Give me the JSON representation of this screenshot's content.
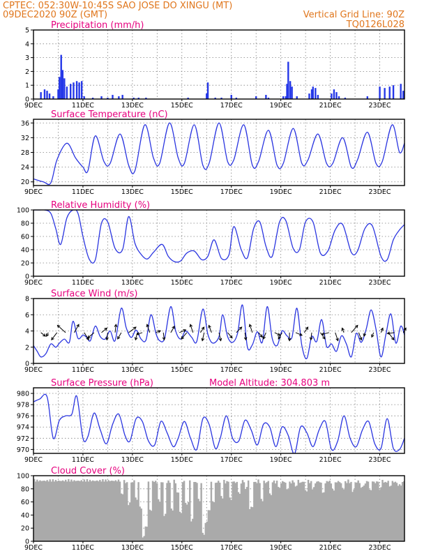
{
  "header": {
    "line1": "CPTEC:   052:30W-10:45S   SAO JOSE DO XINGU (MT)",
    "line2": "09DEC2020 90Z (GMT)",
    "right1": "Vertical Grid Line: 90Z",
    "right2": "TQ0126L028"
  },
  "colors": {
    "header": "#e0761c",
    "title": "#e6007e",
    "line": "#2a35e0",
    "precip": "#2437e8",
    "cloud": "#aaaaaa",
    "arrow": "#000000"
  },
  "x_axis": {
    "ticks": [
      "9DEC",
      "11DEC",
      "13DEC",
      "15DEC",
      "17DEC",
      "19DEC",
      "21DEC",
      "23DEC"
    ],
    "days": 15
  },
  "chart_data": [
    {
      "type": "bar",
      "title": "Precipitation (mm/h)",
      "ylim": [
        0,
        5
      ],
      "yticks": [
        0,
        1,
        2,
        3,
        4,
        5
      ],
      "bars": [
        [
          0.3,
          0.5
        ],
        [
          0.45,
          0.7
        ],
        [
          0.55,
          0.6
        ],
        [
          0.65,
          0.4
        ],
        [
          0.8,
          0.2
        ],
        [
          1.0,
          0.7
        ],
        [
          1.05,
          1.6
        ],
        [
          1.12,
          3.2
        ],
        [
          1.18,
          2.1
        ],
        [
          1.25,
          1.5
        ],
        [
          1.35,
          0.9
        ],
        [
          1.5,
          1.1
        ],
        [
          1.62,
          1.2
        ],
        [
          1.75,
          1.3
        ],
        [
          1.85,
          1.2
        ],
        [
          1.95,
          1.3
        ],
        [
          2.05,
          0.2
        ],
        [
          2.4,
          0.1
        ],
        [
          2.75,
          0.2
        ],
        [
          3.0,
          0.1
        ],
        [
          3.2,
          0.3
        ],
        [
          3.45,
          0.2
        ],
        [
          3.6,
          0.3
        ],
        [
          4.05,
          0.1
        ],
        [
          4.25,
          0.1
        ],
        [
          4.55,
          0.1
        ],
        [
          6.25,
          0.1
        ],
        [
          7.0,
          0.4
        ],
        [
          7.05,
          1.2
        ],
        [
          7.35,
          0.1
        ],
        [
          7.6,
          0.1
        ],
        [
          8.0,
          0.3
        ],
        [
          8.2,
          0.1
        ],
        [
          9.0,
          0.2
        ],
        [
          9.4,
          0.3
        ],
        [
          9.5,
          0.1
        ],
        [
          10.1,
          0.2
        ],
        [
          10.2,
          0.2
        ],
        [
          10.25,
          1.1
        ],
        [
          10.3,
          2.7
        ],
        [
          10.38,
          1.3
        ],
        [
          10.45,
          0.9
        ],
        [
          10.65,
          0.2
        ],
        [
          11.15,
          0.4
        ],
        [
          11.25,
          0.7
        ],
        [
          11.3,
          0.9
        ],
        [
          11.4,
          0.8
        ],
        [
          11.5,
          0.3
        ],
        [
          12.05,
          0.4
        ],
        [
          12.15,
          0.7
        ],
        [
          12.25,
          0.5
        ],
        [
          12.35,
          0.2
        ],
        [
          12.6,
          0.1
        ],
        [
          13.5,
          0.2
        ],
        [
          14.0,
          0.9
        ],
        [
          14.2,
          0.8
        ],
        [
          14.4,
          0.9
        ],
        [
          14.55,
          1.0
        ],
        [
          14.85,
          1.1
        ],
        [
          14.95,
          0.6
        ]
      ]
    },
    {
      "type": "line",
      "title": "Surface Temperature (nC)",
      "ylim": [
        19,
        37
      ],
      "yticks": [
        20,
        24,
        28,
        32,
        36
      ],
      "x": [
        0,
        0.4,
        0.7,
        0.95,
        1.35,
        1.7,
        2.0,
        2.2,
        2.5,
        2.85,
        3.1,
        3.5,
        3.85,
        4.1,
        4.5,
        4.85,
        5.1,
        5.5,
        5.85,
        6.1,
        6.5,
        6.85,
        7.1,
        7.5,
        7.85,
        8.1,
        8.5,
        8.85,
        9.1,
        9.5,
        9.85,
        10.1,
        10.5,
        10.85,
        11.1,
        11.5,
        11.85,
        12.1,
        12.5,
        12.85,
        13.1,
        13.5,
        13.85,
        14.1,
        14.5,
        14.8,
        15.0
      ],
      "values": [
        20.8,
        20.0,
        19.7,
        26.0,
        30.5,
        26.5,
        24.0,
        23.0,
        32.5,
        25.5,
        25.0,
        33.0,
        24.5,
        23.0,
        35.5,
        26.5,
        25.0,
        36.0,
        26.5,
        25.0,
        35.5,
        24.5,
        25.0,
        36.0,
        25.5,
        26.0,
        35.5,
        24.5,
        25.5,
        34.0,
        24.5,
        25.0,
        34.5,
        25.0,
        26.0,
        33.0,
        25.0,
        25.0,
        32.0,
        24.0,
        26.0,
        33.5,
        25.0,
        25.5,
        35.5,
        28.0,
        30.5
      ]
    },
    {
      "type": "line",
      "title": "Relative Humidity (%)",
      "ylim": [
        0,
        100
      ],
      "yticks": [
        0,
        20,
        40,
        60,
        80,
        100
      ],
      "x": [
        0,
        0.25,
        0.45,
        0.7,
        0.9,
        1.1,
        1.35,
        1.6,
        1.8,
        2.0,
        2.25,
        2.5,
        2.75,
        3.0,
        3.3,
        3.6,
        3.85,
        4.1,
        4.35,
        4.6,
        4.85,
        5.2,
        5.45,
        5.7,
        5.95,
        6.2,
        6.5,
        6.8,
        7.05,
        7.3,
        7.6,
        7.9,
        8.1,
        8.4,
        8.65,
        8.9,
        9.15,
        9.4,
        9.65,
        9.95,
        10.2,
        10.5,
        10.75,
        11.0,
        11.3,
        11.6,
        11.9,
        12.2,
        12.5,
        12.85,
        13.1,
        13.4,
        13.7,
        14.05,
        14.3,
        14.55,
        14.8,
        15.0
      ],
      "values": [
        100,
        100,
        100,
        95,
        72,
        48,
        88,
        100,
        95,
        60,
        26,
        25,
        80,
        82,
        42,
        40,
        90,
        50,
        33,
        26,
        36,
        48,
        30,
        22,
        23,
        35,
        38,
        25,
        30,
        55,
        27,
        32,
        75,
        40,
        28,
        72,
        82,
        45,
        30,
        82,
        84,
        42,
        40,
        82,
        82,
        35,
        38,
        70,
        78,
        36,
        38,
        72,
        76,
        30,
        25,
        55,
        70,
        78
      ]
    },
    {
      "type": "line",
      "title": "Surface Wind (m/s)",
      "ylim": [
        0,
        8
      ],
      "yticks": [
        0,
        2,
        4,
        6,
        8
      ],
      "x": [
        0,
        0.15,
        0.3,
        0.5,
        0.7,
        0.9,
        1.05,
        1.25,
        1.45,
        1.6,
        1.8,
        2.0,
        2.15,
        2.3,
        2.5,
        2.7,
        2.9,
        3.1,
        3.3,
        3.55,
        3.75,
        3.95,
        4.15,
        4.35,
        4.55,
        4.75,
        4.95,
        5.1,
        5.3,
        5.55,
        5.75,
        5.95,
        6.15,
        6.4,
        6.6,
        6.85,
        7.05,
        7.25,
        7.5,
        7.65,
        7.85,
        8.05,
        8.25,
        8.45,
        8.65,
        8.85,
        9.05,
        9.25,
        9.45,
        9.65,
        9.85,
        10.05,
        10.25,
        10.45,
        10.65,
        10.85,
        11.05,
        11.25,
        11.45,
        11.65,
        11.85,
        12.05,
        12.25,
        12.45,
        12.65,
        12.85,
        13.05,
        13.25,
        13.45,
        13.65,
        13.85,
        14.05,
        14.25,
        14.45,
        14.65,
        14.85,
        15.0
      ],
      "values": [
        2.2,
        1.5,
        0.8,
        1.2,
        2.4,
        2.0,
        2.5,
        3.0,
        2.6,
        5.2,
        3.1,
        3.5,
        3.2,
        2.8,
        4.6,
        3.3,
        3.0,
        4.0,
        2.8,
        6.8,
        4.4,
        3.2,
        4.1,
        3.0,
        2.9,
        6.0,
        3.7,
        2.8,
        3.1,
        7.0,
        4.0,
        3.0,
        4.0,
        3.2,
        2.7,
        6.7,
        3.6,
        2.5,
        3.3,
        6.0,
        3.3,
        2.6,
        3.7,
        7.2,
        2.0,
        2.3,
        3.9,
        2.6,
        7.0,
        3.1,
        2.2,
        4.0,
        3.4,
        3.2,
        6.8,
        2.2,
        0.6,
        3.3,
        2.7,
        5.4,
        2.1,
        2.4,
        1.5,
        3.4,
        2.4,
        0.8,
        3.7,
        2.6,
        4.2,
        6.6,
        4.2,
        0.8,
        3.6,
        6.1,
        2.5,
        4.6,
        3.5
      ],
      "arrows": [
        [
          0.3,
          0.5,
          -0.4
        ],
        [
          0.6,
          -0.2,
          -0.4
        ],
        [
          0.95,
          -0.6,
          -0.8
        ],
        [
          1.3,
          -0.9,
          0.8
        ],
        [
          1.65,
          0.5,
          0.9
        ],
        [
          2.05,
          0.5,
          -0.8
        ],
        [
          2.45,
          -0.7,
          -0.6
        ],
        [
          2.75,
          0.6,
          0.5
        ],
        [
          3.0,
          -0.1,
          -0.8
        ],
        [
          3.3,
          0.1,
          0.9
        ],
        [
          3.55,
          -0.4,
          -0.7
        ],
        [
          3.85,
          0.8,
          0.6
        ],
        [
          4.2,
          -0.2,
          -0.8
        ],
        [
          4.4,
          -0.6,
          -0.2
        ],
        [
          4.7,
          -0.3,
          0.9
        ],
        [
          4.95,
          0.5,
          0.2
        ],
        [
          5.25,
          0.1,
          -0.8
        ],
        [
          5.55,
          0.4,
          0.7
        ],
        [
          5.9,
          0.7,
          0.3
        ],
        [
          6.2,
          -0.6,
          -0.7
        ],
        [
          6.45,
          -0.3,
          0.9
        ],
        [
          6.75,
          0.4,
          0.6
        ],
        [
          6.9,
          -0.2,
          -0.9
        ],
        [
          7.2,
          -0.3,
          0.8
        ],
        [
          7.5,
          0.2,
          -0.9
        ],
        [
          7.85,
          0.5,
          -0.6
        ],
        [
          8.2,
          0.6,
          0.6
        ],
        [
          8.55,
          0.1,
          -0.8
        ],
        [
          8.85,
          -0.3,
          0.9
        ],
        [
          9.1,
          0.4,
          -0.5
        ],
        [
          9.4,
          -0.3,
          -0.7
        ],
        [
          9.75,
          0.6,
          -0.3
        ],
        [
          10.05,
          -0.4,
          -0.7
        ],
        [
          10.35,
          0.0,
          -0.9
        ],
        [
          10.6,
          0.7,
          -0.3
        ],
        [
          10.95,
          0.4,
          0.6
        ],
        [
          11.25,
          -0.1,
          -0.8
        ],
        [
          11.6,
          0.5,
          -0.7
        ],
        [
          11.95,
          -0.8,
          -0.2
        ],
        [
          12.2,
          0.3,
          -0.9
        ],
        [
          12.55,
          -0.2,
          0.5
        ],
        [
          12.85,
          0.7,
          0.8
        ],
        [
          13.15,
          0.3,
          -0.8
        ],
        [
          13.4,
          -0.1,
          -0.4
        ],
        [
          13.75,
          -0.2,
          -0.5
        ],
        [
          14.05,
          0.2,
          0.5
        ],
        [
          14.35,
          0.6,
          -0.8
        ],
        [
          14.6,
          -0.8,
          -0.1
        ],
        [
          14.95,
          0.3,
          0.5
        ]
      ]
    },
    {
      "type": "line",
      "title": "Surface Pressure (hPa)",
      "subtitle": "Model Altitude: 304.803 m",
      "ylim": [
        969.3,
        981
      ],
      "yticks": [
        970,
        972,
        974,
        976,
        978,
        980
      ],
      "x": [
        0,
        0.25,
        0.55,
        0.8,
        1.05,
        1.3,
        1.55,
        1.75,
        2.0,
        2.2,
        2.45,
        2.7,
        2.95,
        3.2,
        3.45,
        3.7,
        3.9,
        4.15,
        4.4,
        4.65,
        4.9,
        5.15,
        5.4,
        5.65,
        5.85,
        6.1,
        6.35,
        6.6,
        6.85,
        7.1,
        7.35,
        7.55,
        7.8,
        8.05,
        8.3,
        8.55,
        8.8,
        9.05,
        9.3,
        9.55,
        9.8,
        10.05,
        10.3,
        10.55,
        10.8,
        11.05,
        11.3,
        11.55,
        11.8,
        12.05,
        12.3,
        12.55,
        12.8,
        13.05,
        13.3,
        13.55,
        13.8,
        14.05,
        14.3,
        14.55,
        14.8,
        15.0
      ],
      "values": [
        978.5,
        979.0,
        979.4,
        972.0,
        975.2,
        976.0,
        976.3,
        979.5,
        972.0,
        972.3,
        976.5,
        973.5,
        971.0,
        974.5,
        976.3,
        972.5,
        971.5,
        975.5,
        975.0,
        971.5,
        970.8,
        975.0,
        973.0,
        970.5,
        972.0,
        975.0,
        972.0,
        970.0,
        975.5,
        974.5,
        970.2,
        972.0,
        976.0,
        972.0,
        971.5,
        975.2,
        973.5,
        970.8,
        974.5,
        974.0,
        970.5,
        974.0,
        972.5,
        969.2,
        974.0,
        973.0,
        970.5,
        973.5,
        975.0,
        970.0,
        971.5,
        976.0,
        972.0,
        970.5,
        973.5,
        975.0,
        971.0,
        970.2,
        975.5,
        970.2,
        970.0,
        972.0
      ]
    },
    {
      "type": "bar",
      "title": "Cloud Cover (%)",
      "ylim": [
        0,
        100
      ],
      "yticks": [
        0,
        20,
        40,
        60,
        80,
        100
      ],
      "dips": [
        [
          3.6,
          68
        ],
        [
          3.85,
          55
        ],
        [
          4.15,
          62
        ],
        [
          4.35,
          48
        ],
        [
          4.45,
          3
        ],
        [
          4.55,
          20
        ],
        [
          4.75,
          45
        ],
        [
          5.1,
          60
        ],
        [
          5.3,
          38
        ],
        [
          5.6,
          45
        ],
        [
          5.85,
          72
        ],
        [
          5.95,
          40
        ],
        [
          6.2,
          55
        ],
        [
          6.4,
          30
        ],
        [
          6.7,
          60
        ],
        [
          6.85,
          8
        ],
        [
          6.95,
          25
        ],
        [
          7.1,
          45
        ],
        [
          7.25,
          58
        ],
        [
          7.6,
          65
        ],
        [
          7.95,
          62
        ],
        [
          8.3,
          70
        ],
        [
          8.6,
          78
        ],
        [
          8.8,
          48
        ],
        [
          9.25,
          60
        ],
        [
          9.6,
          68
        ],
        [
          9.9,
          78
        ],
        [
          10.25,
          75
        ],
        [
          10.6,
          80
        ],
        [
          11.0,
          73
        ],
        [
          11.3,
          78
        ],
        [
          11.7,
          70
        ],
        [
          12.1,
          75
        ],
        [
          12.5,
          78
        ],
        [
          12.9,
          75
        ],
        [
          13.3,
          80
        ],
        [
          13.6,
          76
        ],
        [
          14.0,
          78
        ],
        [
          14.4,
          80
        ],
        [
          14.8,
          82
        ]
      ],
      "base": 95
    }
  ]
}
